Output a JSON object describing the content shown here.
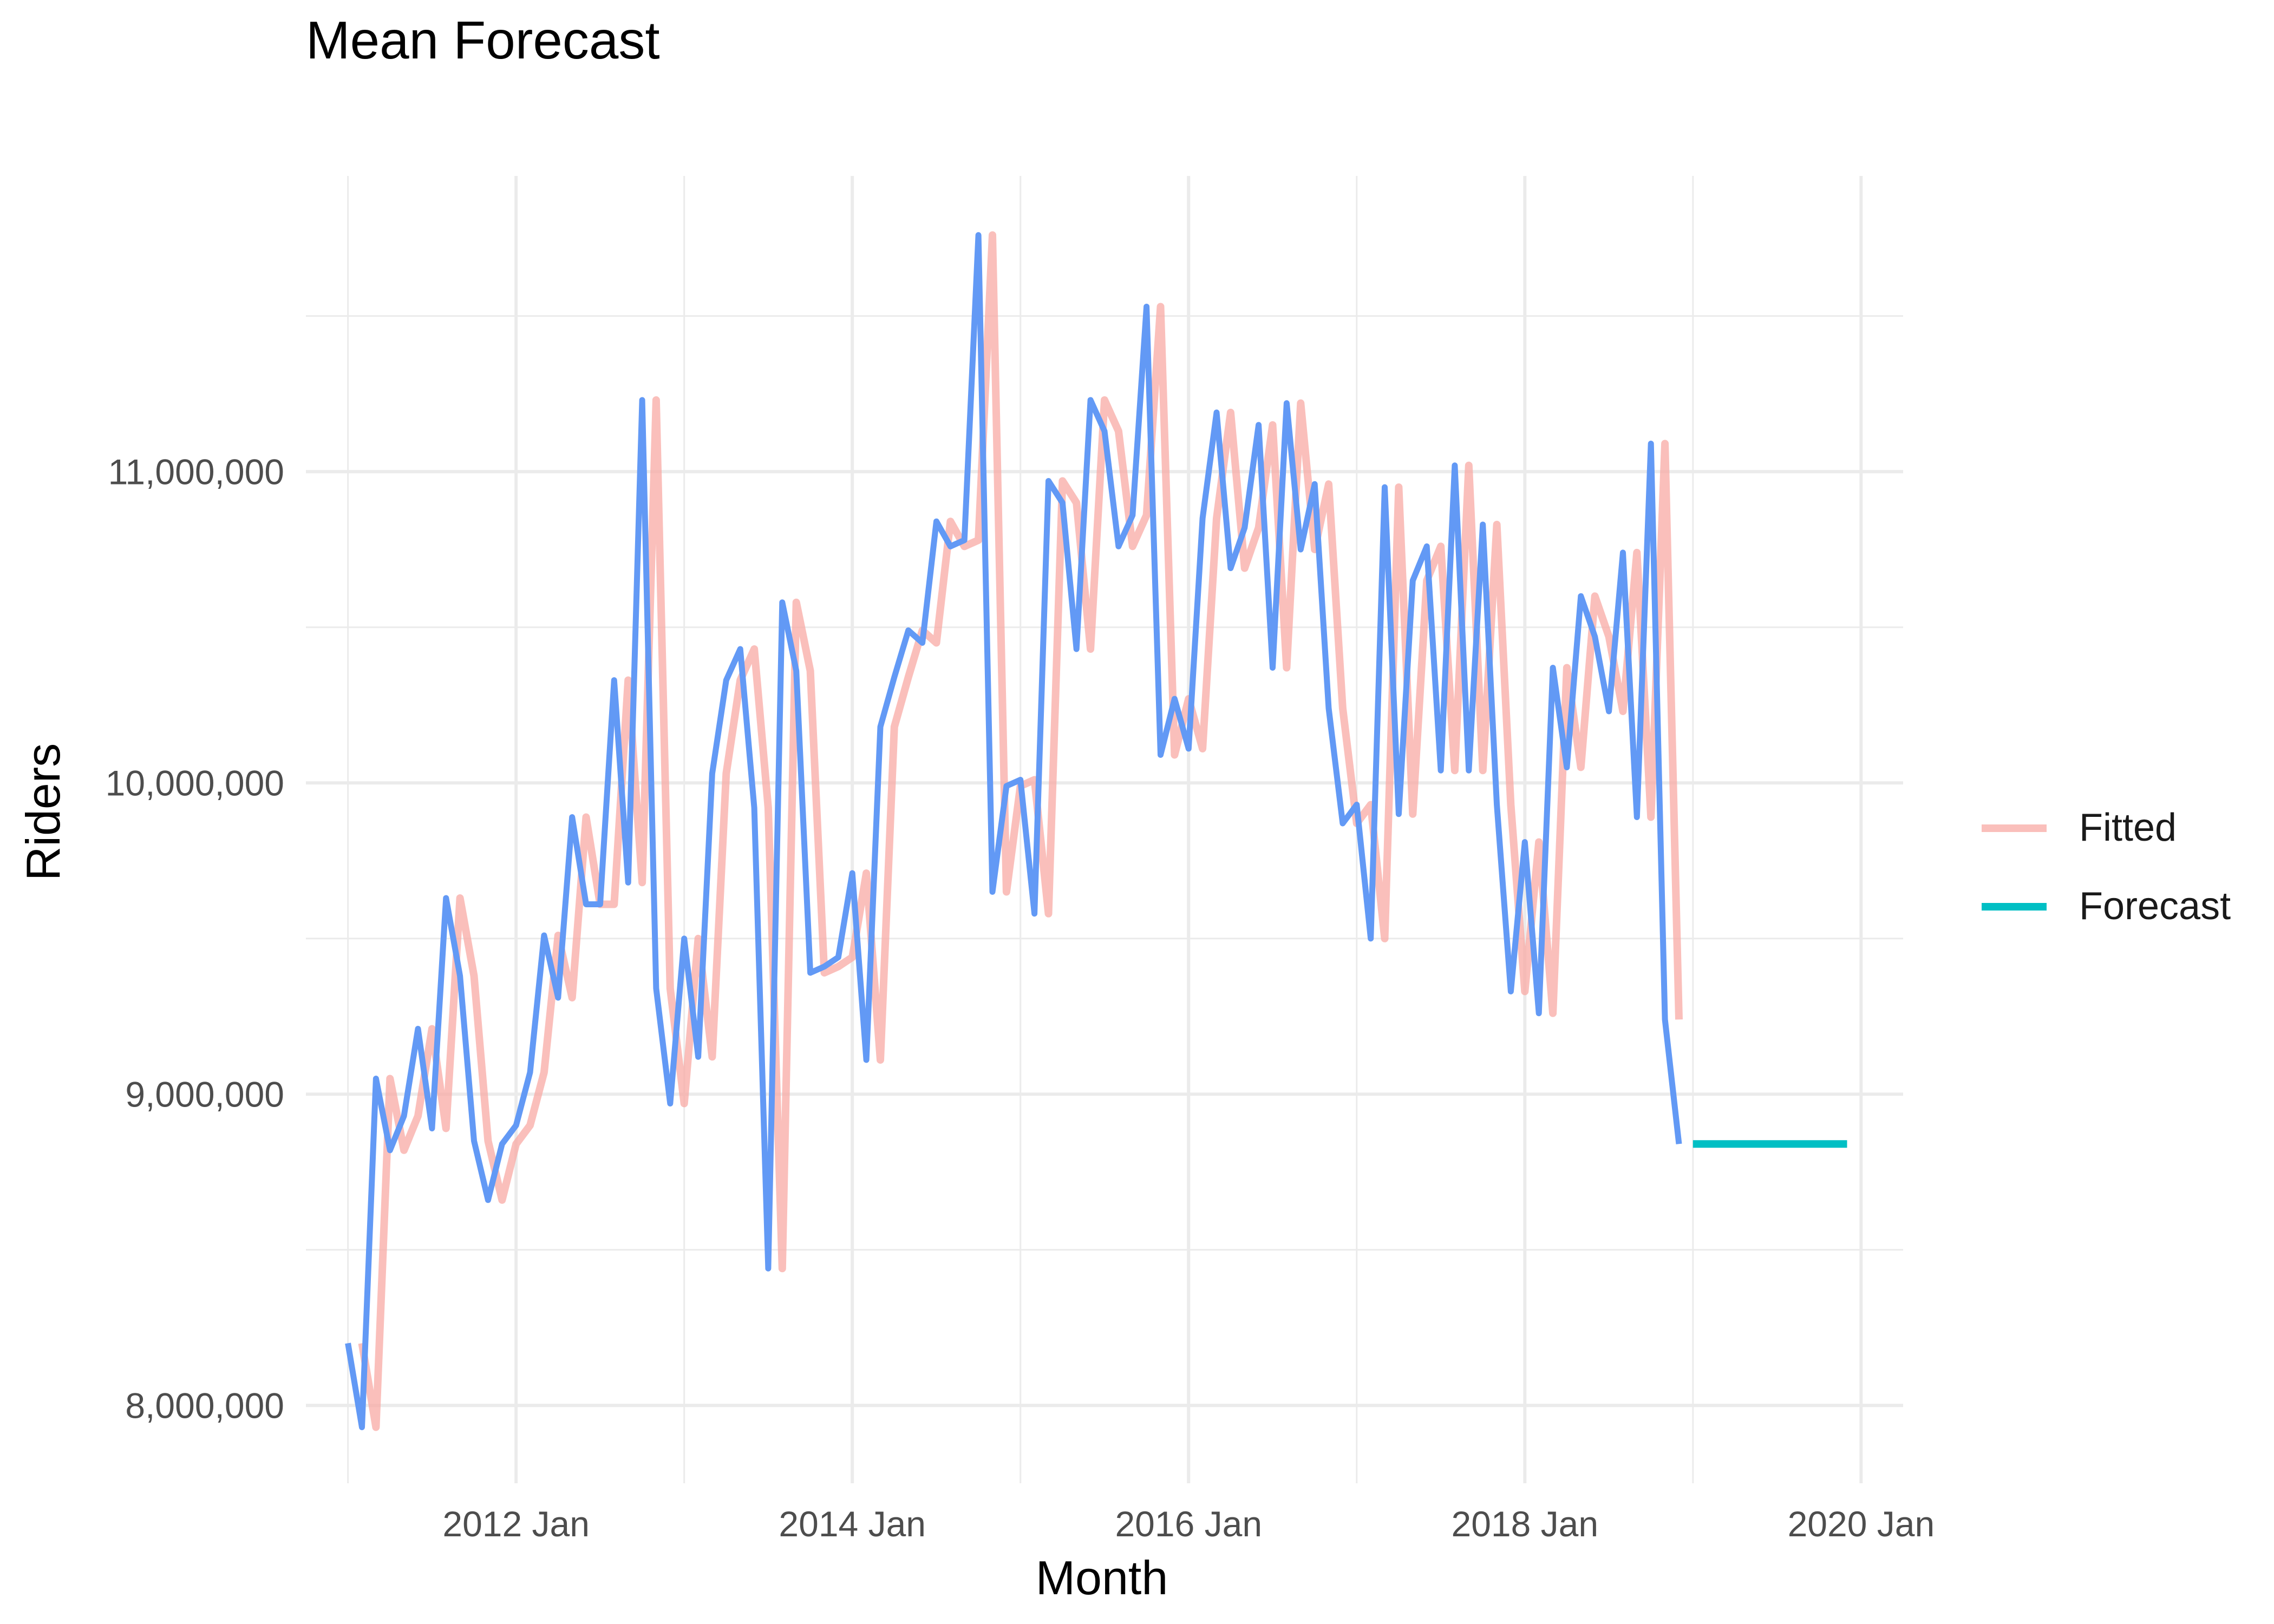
{
  "chart_data": {
    "type": "line",
    "title": "Mean Forecast",
    "xlabel": "Month",
    "ylabel": "Riders",
    "grid": true,
    "legend_position": "right",
    "x_tick_labels": [
      "2012 Jan",
      "2014 Jan",
      "2016 Jan",
      "2018 Jan",
      "2020 Jan"
    ],
    "x_ticks": [
      "2012-01",
      "2014-01",
      "2016-01",
      "2018-01",
      "2020-01"
    ],
    "y_tick_labels": [
      "8,000,000",
      "9,000,000",
      "10,000,000",
      "11,000,000"
    ],
    "y_ticks": [
      8000000,
      9000000,
      10000000,
      11000000
    ],
    "xlim": [
      "2010-10",
      "2020-04"
    ],
    "ylim": [
      7750000,
      11950000
    ],
    "legend": [
      {
        "name": "Fitted",
        "color": "#f8a9a4",
        "opacity": 0.75
      },
      {
        "name": "Forecast",
        "color": "#00bfc4",
        "opacity": 1
      }
    ],
    "series": [
      {
        "key": "actual",
        "color": "#6299f5",
        "months": [
          "2011-01",
          "2011-02",
          "2011-03",
          "2011-04",
          "2011-05",
          "2011-06",
          "2011-07",
          "2011-08",
          "2011-09",
          "2011-10",
          "2011-11",
          "2011-12",
          "2012-01",
          "2012-02",
          "2012-03",
          "2012-04",
          "2012-05",
          "2012-06",
          "2012-07",
          "2012-08",
          "2012-09",
          "2012-10",
          "2012-11",
          "2012-12",
          "2013-01",
          "2013-02",
          "2013-03",
          "2013-04",
          "2013-05",
          "2013-06",
          "2013-07",
          "2013-08",
          "2013-09",
          "2013-10",
          "2013-11",
          "2013-12",
          "2014-01",
          "2014-02",
          "2014-03",
          "2014-04",
          "2014-05",
          "2014-06",
          "2014-07",
          "2014-08",
          "2014-09",
          "2014-10",
          "2014-11",
          "2014-12",
          "2015-01",
          "2015-02",
          "2015-03",
          "2015-04",
          "2015-05",
          "2015-06",
          "2015-07",
          "2015-08",
          "2015-09",
          "2015-10",
          "2015-11",
          "2015-12",
          "2016-01",
          "2016-02",
          "2016-03",
          "2016-04",
          "2016-05",
          "2016-06",
          "2016-07",
          "2016-08",
          "2016-09",
          "2016-10",
          "2016-11",
          "2016-12",
          "2017-01",
          "2017-02",
          "2017-03",
          "2017-04",
          "2017-05",
          "2017-06",
          "2017-07",
          "2017-08",
          "2017-09",
          "2017-10",
          "2017-11",
          "2017-12",
          "2018-01",
          "2018-02",
          "2018-03",
          "2018-04",
          "2018-05",
          "2018-06",
          "2018-07",
          "2018-08",
          "2018-09",
          "2018-10",
          "2018-11",
          "2018-12"
        ],
        "values": [
          8200000,
          7930000,
          9050000,
          8820000,
          8930000,
          9210000,
          8890000,
          9630000,
          9380000,
          8850000,
          8660000,
          8840000,
          8900000,
          9070000,
          9510000,
          9310000,
          9890000,
          9610000,
          9610000,
          10330000,
          9680000,
          11230000,
          9340000,
          8970000,
          9500000,
          9120000,
          10030000,
          10330000,
          10430000,
          9920000,
          8440000,
          10580000,
          10360000,
          9390000,
          9410000,
          9440000,
          9710000,
          9110000,
          10180000,
          10340000,
          10490000,
          10450000,
          10840000,
          10760000,
          10780000,
          11760000,
          9650000,
          9990000,
          10010000,
          9580000,
          10970000,
          10900000,
          10430000,
          11230000,
          11130000,
          10760000,
          10860000,
          11530000,
          10090000,
          10270000,
          10110000,
          10850000,
          11190000,
          10690000,
          10820000,
          11150000,
          10370000,
          11220000,
          10750000,
          10960000,
          10240000,
          9870000,
          9930000,
          9500000,
          10950000,
          9900000,
          10650000,
          10760000,
          10040000,
          11020000,
          10040000,
          10830000,
          9930000,
          9330000,
          9810000,
          9260000,
          10370000,
          10050000,
          10600000,
          10470000,
          10230000,
          10740000,
          9890000,
          11090000,
          9240000,
          8840000
        ]
      },
      {
        "key": "fitted",
        "color": "#f8a9a4",
        "months": [
          "2011-02",
          "2011-03",
          "2011-04",
          "2011-05",
          "2011-06",
          "2011-07",
          "2011-08",
          "2011-09",
          "2011-10",
          "2011-11",
          "2011-12",
          "2012-01",
          "2012-02",
          "2012-03",
          "2012-04",
          "2012-05",
          "2012-06",
          "2012-07",
          "2012-08",
          "2012-09",
          "2012-10",
          "2012-11",
          "2012-12",
          "2013-01",
          "2013-02",
          "2013-03",
          "2013-04",
          "2013-05",
          "2013-06",
          "2013-07",
          "2013-08",
          "2013-09",
          "2013-10",
          "2013-11",
          "2013-12",
          "2014-01",
          "2014-02",
          "2014-03",
          "2014-04",
          "2014-05",
          "2014-06",
          "2014-07",
          "2014-08",
          "2014-09",
          "2014-10",
          "2014-11",
          "2014-12",
          "2015-01",
          "2015-02",
          "2015-03",
          "2015-04",
          "2015-05",
          "2015-06",
          "2015-07",
          "2015-08",
          "2015-09",
          "2015-10",
          "2015-11",
          "2015-12",
          "2016-01",
          "2016-02",
          "2016-03",
          "2016-04",
          "2016-05",
          "2016-06",
          "2016-07",
          "2016-08",
          "2016-09",
          "2016-10",
          "2016-11",
          "2016-12",
          "2017-01",
          "2017-02",
          "2017-03",
          "2017-04",
          "2017-05",
          "2017-06",
          "2017-07",
          "2017-08",
          "2017-09",
          "2017-10",
          "2017-11",
          "2017-12",
          "2018-01",
          "2018-02",
          "2018-03",
          "2018-04",
          "2018-05",
          "2018-06",
          "2018-07",
          "2018-08",
          "2018-09",
          "2018-10",
          "2018-11",
          "2018-12"
        ],
        "values": [
          8200000,
          7930000,
          9050000,
          8820000,
          8930000,
          9210000,
          8890000,
          9630000,
          9380000,
          8850000,
          8660000,
          8840000,
          8900000,
          9070000,
          9510000,
          9310000,
          9890000,
          9610000,
          9610000,
          10330000,
          9680000,
          11230000,
          9340000,
          8970000,
          9500000,
          9120000,
          10030000,
          10330000,
          10430000,
          9920000,
          8440000,
          10580000,
          10360000,
          9390000,
          9410000,
          9440000,
          9710000,
          9110000,
          10180000,
          10340000,
          10490000,
          10450000,
          10840000,
          10760000,
          10780000,
          11760000,
          9650000,
          9990000,
          10010000,
          9580000,
          10970000,
          10900000,
          10430000,
          11230000,
          11130000,
          10760000,
          10860000,
          11530000,
          10090000,
          10270000,
          10110000,
          10850000,
          11190000,
          10690000,
          10820000,
          11150000,
          10370000,
          11220000,
          10750000,
          10960000,
          10240000,
          9870000,
          9930000,
          9500000,
          10950000,
          9900000,
          10650000,
          10760000,
          10040000,
          11020000,
          10040000,
          10830000,
          9930000,
          9330000,
          9810000,
          9260000,
          10370000,
          10050000,
          10600000,
          10470000,
          10230000,
          10740000,
          9890000,
          11090000,
          9240000
        ]
      },
      {
        "key": "forecast",
        "color": "#00bfc4",
        "months": [
          "2019-01",
          "2019-12"
        ],
        "values": [
          8840000,
          8840000
        ]
      }
    ]
  }
}
